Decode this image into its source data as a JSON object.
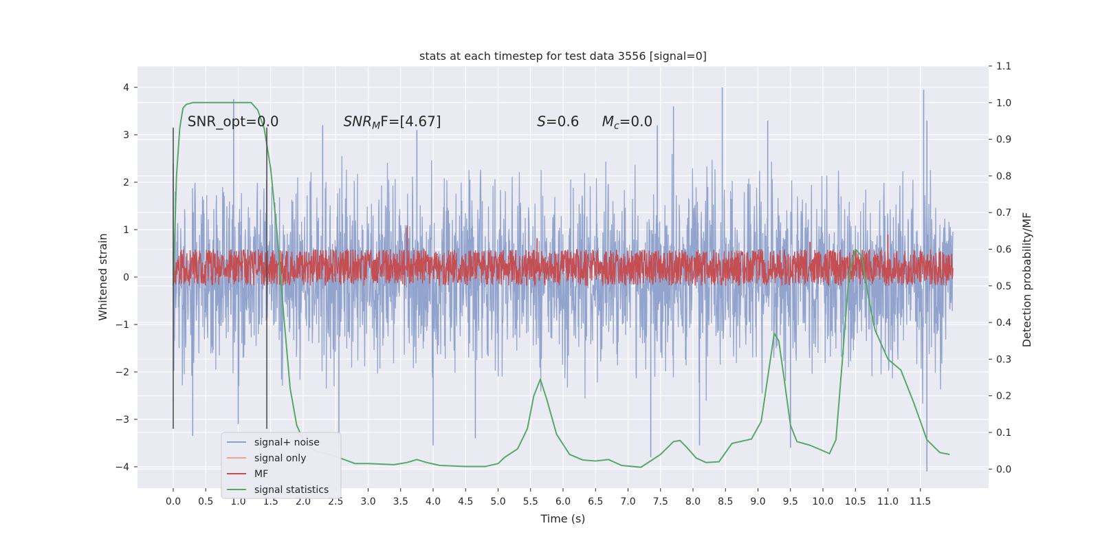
{
  "chart_data": {
    "type": "line",
    "title": "stats at each timestep for test data 3556 [signal=0]",
    "xlabel": "Time (s)",
    "ylabel": "Whitened strain",
    "y2label": "Detection probability/MF",
    "xlim": [
      -0.55,
      12.55
    ],
    "ylim": [
      -4.45,
      4.45
    ],
    "y2lim": [
      -0.052,
      1.1
    ],
    "x_ticks": [
      0.0,
      0.5,
      1.0,
      1.5,
      2.0,
      2.5,
      3.0,
      3.5,
      4.0,
      4.5,
      5.0,
      5.5,
      6.0,
      6.5,
      7.0,
      7.5,
      8.0,
      8.5,
      9.0,
      9.5,
      10.0,
      10.5,
      11.0,
      11.5
    ],
    "x_tick_labels": [
      "0.0",
      "0.5",
      "1.0",
      "1.5",
      "2.0",
      "2.5",
      "3.0",
      "3.5",
      "4.0",
      "4.5",
      "5.0",
      "5.5",
      "6.0",
      "6.5",
      "7.0",
      "7.5",
      "8.0",
      "8.5",
      "9.0",
      "9.5",
      "10.0",
      "10.5",
      "11.0",
      "11.5"
    ],
    "y_ticks": [
      4,
      3,
      2,
      1,
      0,
      -1,
      -2,
      -3,
      -4
    ],
    "y_tick_labels": [
      "4",
      "3",
      "2",
      "1",
      "0",
      "−1",
      "−2",
      "−3",
      "−4"
    ],
    "y2_ticks": [
      1.1,
      1.0,
      0.9,
      0.8,
      0.7,
      0.6,
      0.5,
      0.4,
      0.3,
      0.2,
      0.1,
      0.0
    ],
    "y2_tick_labels": [
      "1.1",
      "1.0",
      "0.9",
      "0.8",
      "0.7",
      "0.6",
      "0.5",
      "0.4",
      "0.3",
      "0.2",
      "0.1",
      "0.0"
    ],
    "grid": true,
    "legend_position": "lower-left",
    "series": [
      {
        "name": "signal+ noise",
        "axis": "left",
        "color": "#8da0cb",
        "x_range": [
          0.0,
          12.0
        ],
        "typical_band": [
          -1.9,
          1.9
        ],
        "peaks_high": [
          [
            0.0,
            2.4
          ],
          [
            0.93,
            3.75
          ],
          [
            2.3,
            3.2
          ],
          [
            3.75,
            3.1
          ],
          [
            7.45,
            3.2
          ],
          [
            7.7,
            3.6
          ],
          [
            8.45,
            4.0
          ],
          [
            9.15,
            3.3
          ],
          [
            11.55,
            3.95
          ],
          [
            11.6,
            3.3
          ]
        ],
        "peaks_low": [
          [
            0.3,
            -3.35
          ],
          [
            1.0,
            -3.1
          ],
          [
            2.55,
            -3.6
          ],
          [
            4.0,
            -3.55
          ],
          [
            4.65,
            -3.4
          ],
          [
            7.35,
            -3.8
          ],
          [
            8.1,
            -3.55
          ],
          [
            9.5,
            -3.6
          ],
          [
            11.6,
            -4.1
          ]
        ]
      },
      {
        "name": "signal only",
        "axis": "left",
        "color": "#e8a88f",
        "x": [
          0.0,
          12.0
        ],
        "y": [
          0.0,
          0.0
        ]
      },
      {
        "name": "MF",
        "axis": "right",
        "color": "#c44e52",
        "x_range": [
          0.0,
          12.0
        ],
        "band": [
          0.5,
          0.6
        ],
        "peaks": [
          [
            3.6,
            0.665
          ],
          [
            5.6,
            0.63
          ],
          [
            9.8,
            0.62
          ],
          [
            11.0,
            0.64
          ]
        ]
      },
      {
        "name": "signal statistics",
        "axis": "right",
        "color": "#55a868",
        "x": [
          0.0,
          0.05,
          0.1,
          0.15,
          0.2,
          0.3,
          0.5,
          0.8,
          1.0,
          1.2,
          1.3,
          1.4,
          1.5,
          1.6,
          1.7,
          1.8,
          1.9,
          2.0,
          2.1,
          2.2,
          2.4,
          2.6,
          2.8,
          3.0,
          3.4,
          3.6,
          3.75,
          3.9,
          4.1,
          4.5,
          4.8,
          5.0,
          5.1,
          5.3,
          5.45,
          5.55,
          5.65,
          5.75,
          5.9,
          6.1,
          6.3,
          6.5,
          6.7,
          6.9,
          7.2,
          7.5,
          7.7,
          7.8,
          7.9,
          8.05,
          8.2,
          8.4,
          8.6,
          8.9,
          9.05,
          9.15,
          9.25,
          9.32,
          9.4,
          9.5,
          9.6,
          9.8,
          10.0,
          10.1,
          10.2,
          10.3,
          10.4,
          10.5,
          10.6,
          10.7,
          10.8,
          11.0,
          11.2,
          11.4,
          11.6,
          11.8,
          11.95
        ],
        "y": [
          0.5,
          0.8,
          0.93,
          0.985,
          0.995,
          1.0,
          1.0,
          1.0,
          1.0,
          1.0,
          0.98,
          0.93,
          0.82,
          0.64,
          0.42,
          0.22,
          0.12,
          0.08,
          0.06,
          0.048,
          0.04,
          0.028,
          0.015,
          0.015,
          0.012,
          0.018,
          0.026,
          0.018,
          0.01,
          0.007,
          0.007,
          0.015,
          0.032,
          0.055,
          0.11,
          0.2,
          0.245,
          0.19,
          0.095,
          0.04,
          0.025,
          0.022,
          0.026,
          0.01,
          0.005,
          0.04,
          0.075,
          0.078,
          0.06,
          0.03,
          0.018,
          0.02,
          0.07,
          0.082,
          0.13,
          0.25,
          0.37,
          0.35,
          0.25,
          0.12,
          0.075,
          0.065,
          0.05,
          0.042,
          0.08,
          0.3,
          0.53,
          0.6,
          0.58,
          0.47,
          0.38,
          0.3,
          0.27,
          0.18,
          0.08,
          0.045,
          0.04
        ]
      }
    ],
    "vlines": {
      "x": [
        0.0,
        1.44
      ],
      "ymin": -3.2,
      "ymax": 3.15,
      "color": "#444444"
    },
    "annotations": [
      {
        "id": "snr-opt",
        "text": "SNR_opt=0.0",
        "x": 0.22,
        "y": 3.18
      },
      {
        "id": "snr-mf",
        "math": "SNR",
        "sub": "M",
        "rest": "F=[4.67]",
        "x": 2.62,
        "y": 3.18
      },
      {
        "id": "s",
        "math": "S",
        "sub": "",
        "rest": "=0.6",
        "x": 5.6,
        "y": 3.18
      },
      {
        "id": "mc",
        "math": "M",
        "sub": "c",
        "rest": "=0.0",
        "x": 6.6,
        "y": 3.18
      }
    ]
  }
}
